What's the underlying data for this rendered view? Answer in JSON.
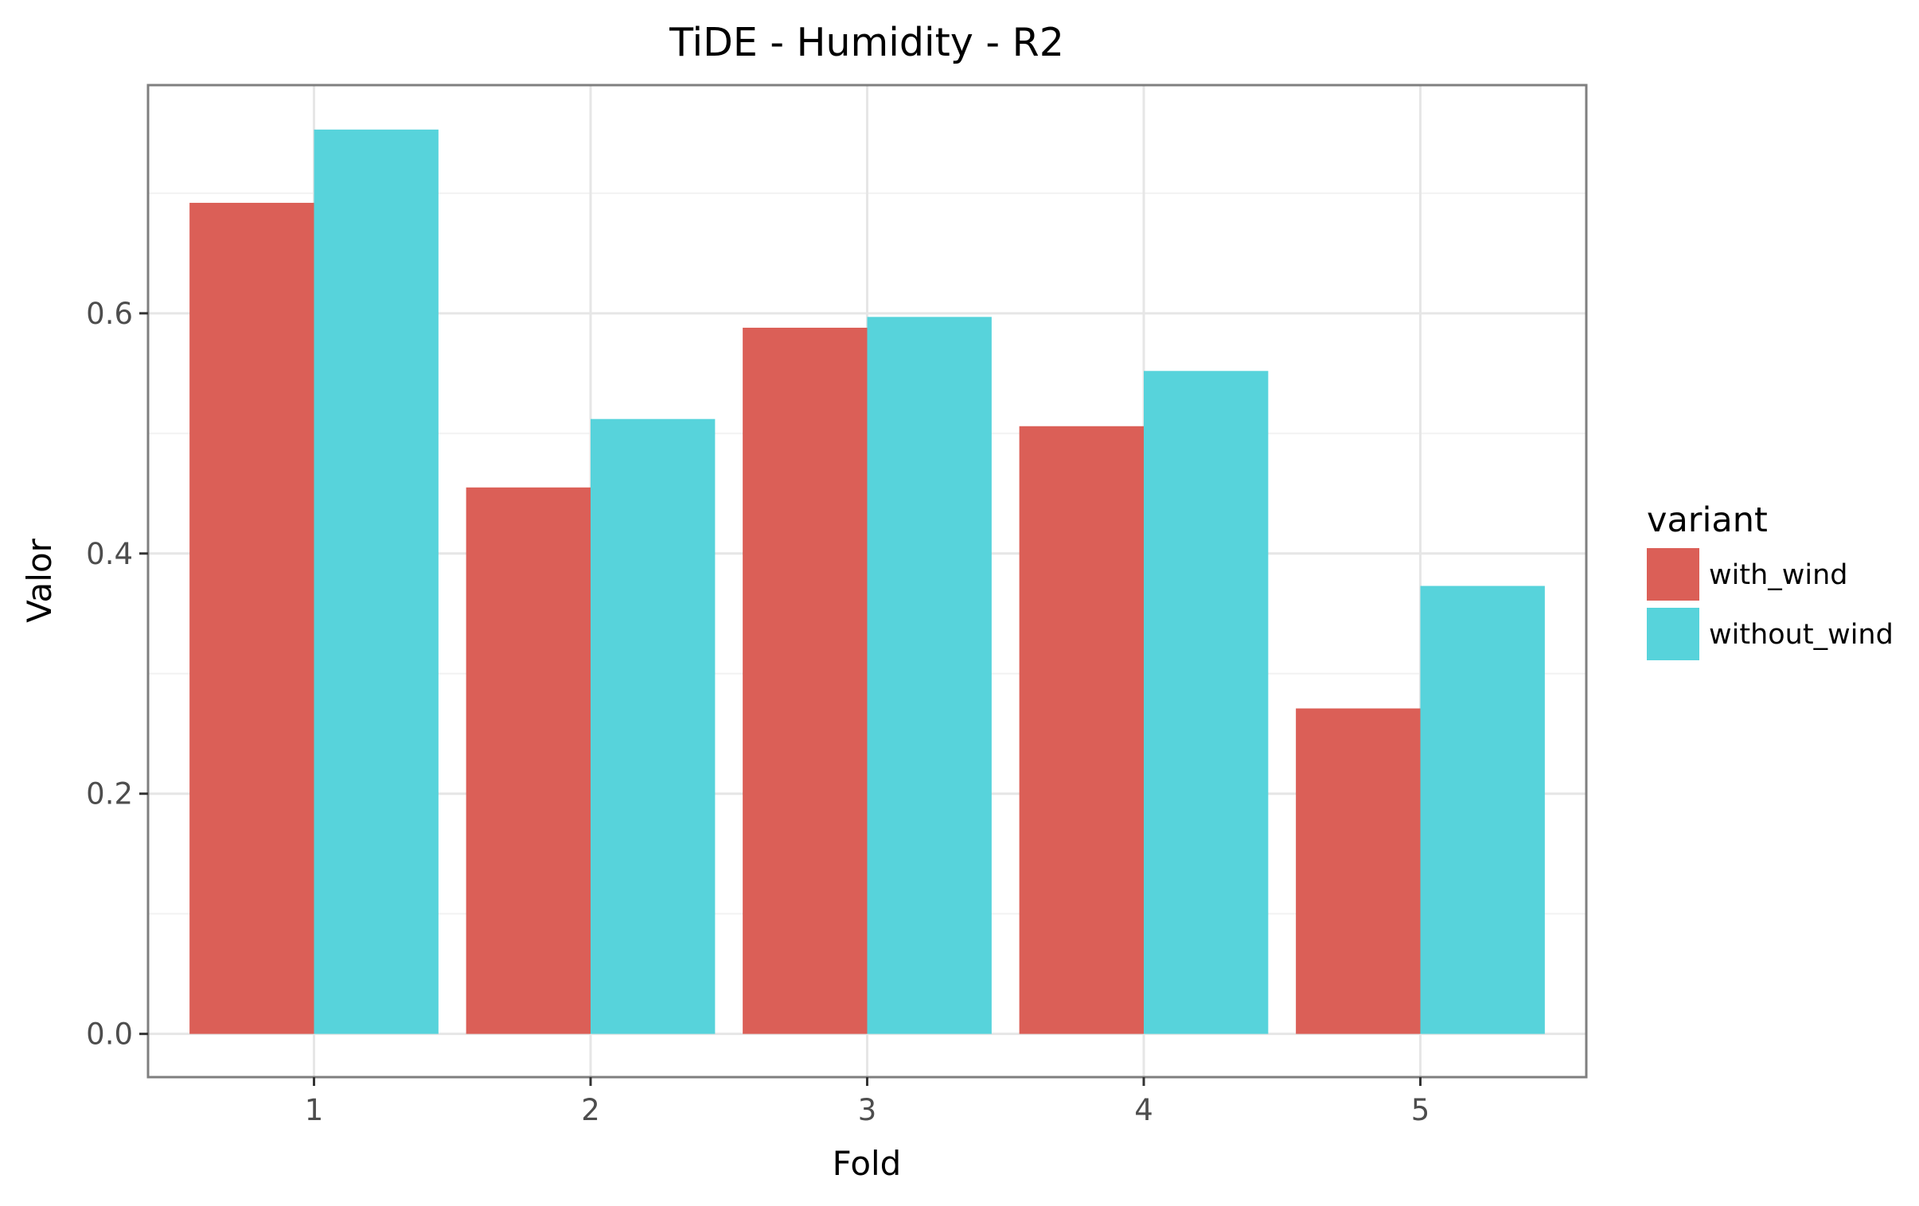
{
  "chart_data": {
    "type": "bar",
    "title": "TiDE - Humidity - R2",
    "xlabel": "Fold",
    "ylabel": "Valor",
    "categories": [
      "1",
      "2",
      "3",
      "4",
      "5"
    ],
    "series": [
      {
        "name": "with_wind",
        "color": "#db5f57",
        "values": [
          0.692,
          0.455,
          0.588,
          0.506,
          0.271
        ]
      },
      {
        "name": "without_wind",
        "color": "#57d3db",
        "values": [
          0.753,
          0.512,
          0.597,
          0.552,
          0.373
        ]
      }
    ],
    "ylim": [
      -0.036,
      0.79
    ],
    "yticks": [
      0.0,
      0.2,
      0.4,
      0.6
    ],
    "ytick_labels": [
      "0.0",
      "0.2",
      "0.4",
      "0.6"
    ],
    "grid": true,
    "legend": {
      "title": "variant",
      "placement": "right"
    }
  }
}
